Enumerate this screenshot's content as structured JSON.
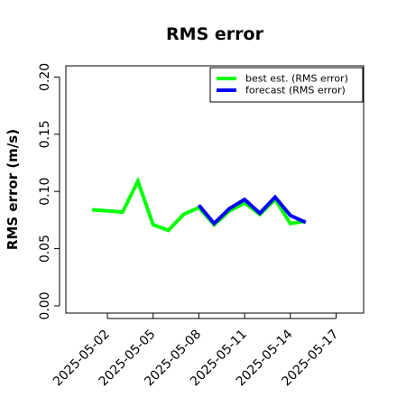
{
  "chart_data": {
    "type": "line",
    "title": "RMS error",
    "xlabel": "",
    "ylabel": "RMS error (m/s)",
    "x_ticks": [
      "2025-05-02",
      "2025-05-05",
      "2025-05-08",
      "2025-05-11",
      "2025-05-14",
      "2025-05-17"
    ],
    "highlight_tick": "2025-05-08",
    "ylim": [
      0.0,
      0.21
    ],
    "y_ticks": [
      "0.00",
      "0.05",
      "0.10",
      "0.15",
      "0.20"
    ],
    "grid": false,
    "legend_position": "top-right",
    "series": [
      {
        "name": "best est. (RMS error)",
        "color": "#00ff00",
        "x": [
          "2025-05-01",
          "2025-05-03",
          "2025-05-04",
          "2025-05-05",
          "2025-05-06",
          "2025-05-07",
          "2025-05-08",
          "2025-05-09",
          "2025-05-10",
          "2025-05-11",
          "2025-05-12",
          "2025-05-13",
          "2025-05-14",
          "2025-05-15"
        ],
        "values": [
          0.084,
          0.082,
          0.109,
          0.071,
          0.066,
          0.08,
          0.086,
          0.071,
          0.083,
          0.09,
          0.08,
          0.093,
          0.072,
          0.074
        ]
      },
      {
        "name": "forecast (RMS error)",
        "color": "#0000ff",
        "x": [
          "2025-05-08",
          "2025-05-09",
          "2025-05-10",
          "2025-05-11",
          "2025-05-12",
          "2025-05-13",
          "2025-05-14",
          "2025-05-15"
        ],
        "values": [
          0.088,
          0.072,
          0.085,
          0.093,
          0.081,
          0.095,
          0.079,
          0.073
        ]
      }
    ]
  }
}
